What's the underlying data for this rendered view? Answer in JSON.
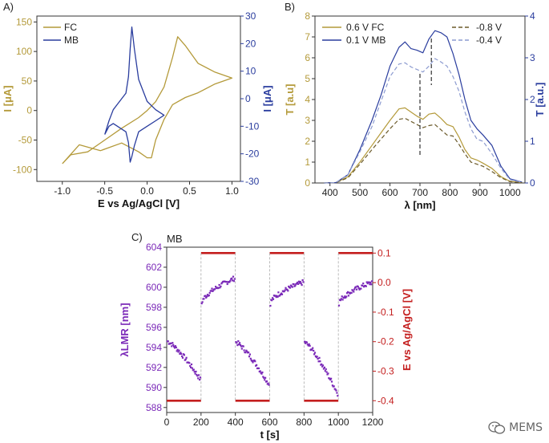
{
  "watermark": {
    "text": "MEMS",
    "icon": "wechat-icon"
  },
  "colors": {
    "fc": "#b49a3a",
    "mb": "#2a3d9e",
    "mb_light": "#8c9bd0",
    "purple": "#7b2ab8",
    "red": "#c41f1f",
    "axis": "#333333"
  },
  "chart_data": [
    {
      "panel": "A)",
      "type": "line",
      "xlabel": "E vs Ag/AgCl [V]",
      "ylabel_left": "I [μA]",
      "ylabel_right": "I [μA]",
      "xlim": [
        -1.3,
        1.1
      ],
      "ylim_left": [
        -120,
        160
      ],
      "ylim_right": [
        -30,
        30
      ],
      "xticks": [
        -1.0,
        -0.5,
        0.0,
        0.5,
        1.0
      ],
      "yticks_left": [
        -100,
        -50,
        0,
        50,
        100,
        150
      ],
      "yticks_right": [
        -30,
        -20,
        -10,
        0,
        10,
        20,
        30
      ],
      "legend": [
        "FC",
        "MB"
      ],
      "series": [
        {
          "name": "FC",
          "axis": "left",
          "x": [
            -1.0,
            -0.9,
            -0.7,
            -0.5,
            -0.3,
            -0.1,
            0.0,
            0.1,
            0.2,
            0.3,
            0.36,
            0.45,
            0.6,
            0.8,
            1.0,
            0.8,
            0.6,
            0.45,
            0.3,
            0.2,
            0.1,
            0.05,
            0.0,
            -0.1,
            -0.3,
            -0.55,
            -0.8,
            -1.0
          ],
          "y": [
            -90,
            -75,
            -70,
            -50,
            -30,
            -12,
            0,
            15,
            40,
            90,
            125,
            110,
            80,
            65,
            55,
            45,
            30,
            22,
            10,
            -15,
            -50,
            -80,
            -80,
            -70,
            -55,
            -68,
            -58,
            -90
          ]
        },
        {
          "name": "MB",
          "axis": "right",
          "x": [
            -0.5,
            -0.45,
            -0.4,
            -0.35,
            -0.3,
            -0.25,
            -0.22,
            -0.2,
            -0.18,
            -0.15,
            -0.1,
            0.0,
            0.1,
            0.2,
            0.1,
            0.0,
            -0.1,
            -0.15,
            -0.18,
            -0.2,
            -0.22,
            -0.25,
            -0.3,
            -0.35,
            -0.4,
            -0.45,
            -0.5
          ],
          "y": [
            -13,
            -8,
            -4,
            -2,
            0,
            2,
            8,
            18,
            26,
            18,
            7,
            -1,
            -4,
            -6,
            -8,
            -10,
            -12,
            -17,
            -21,
            -23,
            -16,
            -12,
            -11,
            -10,
            -9,
            -10,
            -13
          ]
        }
      ]
    },
    {
      "panel": "B)",
      "type": "line",
      "xlabel": "λ [nm]",
      "ylabel_left": "T [a.u]",
      "ylabel_right": "T [a.u.]",
      "xlim": [
        350,
        1050
      ],
      "ylim_left": [
        0,
        8
      ],
      "ylim_right": [
        0,
        4
      ],
      "xticks": [
        400,
        500,
        600,
        700,
        800,
        900,
        1000
      ],
      "yticks_left": [
        0,
        1,
        2,
        3,
        4,
        5,
        6,
        7,
        8
      ],
      "yticks_right": [
        0,
        1,
        2,
        3,
        4
      ],
      "legend": [
        "0.6 V FC",
        "0.1 V MB",
        "-0.8 V",
        "-0.4 V"
      ],
      "x": [
        380,
        420,
        460,
        500,
        540,
        570,
        600,
        630,
        650,
        670,
        690,
        710,
        730,
        750,
        770,
        790,
        810,
        830,
        850,
        870,
        890,
        910,
        940,
        970,
        1000,
        1040
      ],
      "series": [
        {
          "name": "0.6 V FC",
          "axis": "left",
          "style": "solid",
          "values": [
            0,
            0.02,
            0.3,
            1.0,
            1.8,
            2.4,
            3.0,
            3.55,
            3.6,
            3.4,
            3.2,
            3.05,
            3.3,
            3.35,
            3.1,
            2.8,
            2.7,
            2.2,
            1.6,
            1.2,
            1.1,
            0.95,
            0.7,
            0.3,
            0.08,
            0.02
          ]
        },
        {
          "name": "0.1 V MB",
          "axis": "right",
          "style": "solid",
          "values": [
            0,
            0.01,
            0.2,
            0.8,
            1.5,
            2.1,
            2.8,
            3.25,
            3.38,
            3.22,
            3.18,
            3.12,
            3.45,
            3.65,
            3.6,
            3.5,
            3.1,
            2.6,
            2.0,
            1.5,
            1.3,
            1.15,
            0.9,
            0.4,
            0.1,
            0.02
          ]
        },
        {
          "name": "-0.8 V",
          "axis": "left",
          "style": "dashed",
          "values": [
            0,
            0.02,
            0.25,
            0.9,
            1.6,
            2.1,
            2.6,
            3.05,
            3.1,
            2.95,
            2.8,
            2.65,
            2.75,
            2.8,
            2.55,
            2.3,
            2.25,
            1.85,
            1.4,
            1.0,
            0.9,
            0.8,
            0.55,
            0.25,
            0.06,
            0.02
          ]
        },
        {
          "name": "-0.4 V",
          "axis": "right",
          "style": "dashed",
          "values": [
            0,
            0.01,
            0.2,
            0.75,
            1.35,
            1.95,
            2.55,
            2.85,
            2.88,
            2.78,
            2.72,
            2.66,
            2.8,
            2.98,
            2.9,
            2.8,
            2.55,
            2.2,
            1.7,
            1.3,
            1.05,
            1.0,
            0.7,
            0.35,
            0.08,
            0.02
          ]
        }
      ],
      "markers": [
        {
          "x": 700
        },
        {
          "x": 738
        }
      ]
    },
    {
      "panel": "C)",
      "type": "scatter",
      "title": "MB",
      "xlabel": "t [s]",
      "ylabel_left": "λLMR [nm]",
      "ylabel_right": "E vs Ag/AgCl [V]",
      "xlim": [
        0,
        1200
      ],
      "ylim_left": [
        587.5,
        604
      ],
      "ylim_right": [
        -0.44,
        0.12
      ],
      "xticks": [
        0,
        200,
        400,
        600,
        800,
        1000,
        1200
      ],
      "yticks_left": [
        588,
        590,
        592,
        594,
        596,
        598,
        600,
        602,
        604
      ],
      "yticks_right": [
        -0.4,
        -0.3,
        -0.2,
        -0.1,
        0.0,
        0.1
      ],
      "steps": [
        {
          "t0": 0,
          "t1": 200,
          "E": -0.4
        },
        {
          "t0": 200,
          "t1": 400,
          "E": 0.1
        },
        {
          "t0": 400,
          "t1": 600,
          "E": -0.4
        },
        {
          "t0": 600,
          "t1": 800,
          "E": 0.1
        },
        {
          "t0": 800,
          "t1": 1000,
          "E": -0.4
        },
        {
          "t0": 1000,
          "t1": 1200,
          "E": 0.1
        }
      ],
      "segments": [
        {
          "t0": 0,
          "t1": 200,
          "start": 594.6,
          "end": 590.8
        },
        {
          "t0": 200,
          "t1": 400,
          "start": 598.4,
          "end": 600.9
        },
        {
          "t0": 400,
          "t1": 600,
          "start": 594.5,
          "end": 590.3
        },
        {
          "t0": 600,
          "t1": 800,
          "start": 598.4,
          "end": 600.5
        },
        {
          "t0": 800,
          "t1": 1000,
          "start": 594.5,
          "end": 589.4
        },
        {
          "t0": 1000,
          "t1": 1200,
          "start": 598.4,
          "end": 600.5
        }
      ]
    }
  ]
}
